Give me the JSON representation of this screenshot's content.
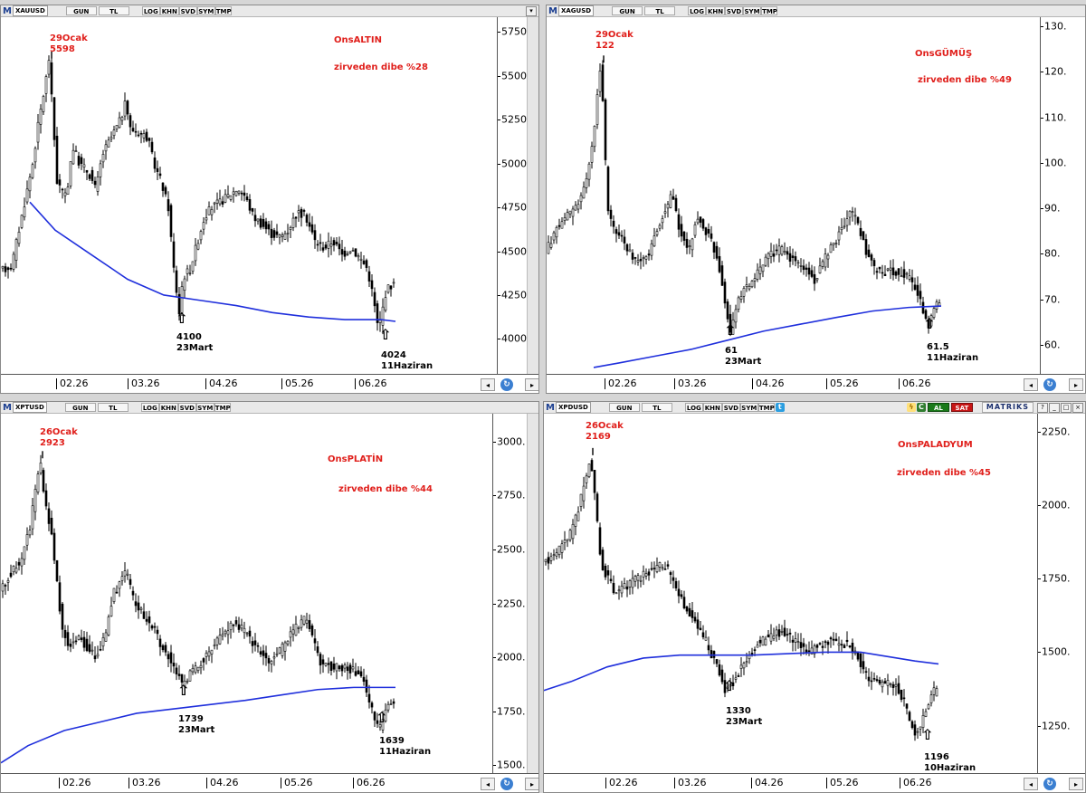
{
  "toolbar": {
    "btn_gun": "GUN",
    "btn_tl": "TL",
    "btn_log": "LOG",
    "btn_khn": "KHN",
    "btn_svd": "SVD",
    "btn_sym": "SYM",
    "btn_tmp": "TMP",
    "logo": "M",
    "al": "AL",
    "sat": "SAT",
    "brand": "MATRIKS"
  },
  "colors": {
    "price": "#000000",
    "moving_average": "#1f2fdc",
    "annotation_red": "#e0201c",
    "annotation_black": "#000000"
  },
  "icons": [
    "m-logo-icon",
    "scroll-left-icon",
    "scroll-right-icon",
    "refresh-icon",
    "arrow-up-icon",
    "bolt-icon",
    "c-icon",
    "twitter-icon"
  ],
  "chart_data": [
    {
      "type": "candlestick",
      "symbol": "XAUUSD",
      "title": "OnsALTIN",
      "subtitle": "zirveden dibe %28",
      "x_labels": [
        "02.26",
        "03.26",
        "04.26",
        "05.26",
        "06.26"
      ],
      "y_ticks": [
        4000,
        4250,
        4500,
        4750,
        5000,
        5250,
        5500,
        5750
      ],
      "y_tick_labels": [
        "4000.",
        "4250.",
        "4500.",
        "4750.",
        "5000.",
        "5250.",
        "5500.",
        "5750."
      ],
      "ylim": [
        3785,
        5835
      ],
      "peak": {
        "date": "29Ocak",
        "value": 5598
      },
      "lows": [
        {
          "value": "4100",
          "date": "23Mart"
        },
        {
          "value": "4024",
          "date": "11Haziran"
        }
      ],
      "price_path": [
        [
          0,
          4380
        ],
        [
          8,
          4400
        ],
        [
          15,
          4420
        ],
        [
          22,
          4600
        ],
        [
          30,
          4800
        ],
        [
          38,
          5000
        ],
        [
          45,
          5250
        ],
        [
          52,
          5450
        ],
        [
          56,
          5598
        ],
        [
          60,
          5300
        ],
        [
          65,
          4900
        ],
        [
          75,
          4800
        ],
        [
          82,
          5100
        ],
        [
          90,
          5000
        ],
        [
          100,
          4950
        ],
        [
          108,
          4850
        ],
        [
          115,
          5050
        ],
        [
          125,
          5150
        ],
        [
          135,
          5250
        ],
        [
          141,
          5350
        ],
        [
          146,
          5200
        ],
        [
          155,
          5180
        ],
        [
          165,
          5150
        ],
        [
          172,
          5000
        ],
        [
          180,
          4900
        ],
        [
          188,
          4750
        ],
        [
          194,
          4400
        ],
        [
          200,
          4150
        ],
        [
          204,
          4350
        ],
        [
          212,
          4400
        ],
        [
          220,
          4550
        ],
        [
          228,
          4700
        ],
        [
          236,
          4750
        ],
        [
          245,
          4780
        ],
        [
          255,
          4820
        ],
        [
          265,
          4860
        ],
        [
          272,
          4820
        ],
        [
          282,
          4700
        ],
        [
          292,
          4650
        ],
        [
          302,
          4600
        ],
        [
          312,
          4580
        ],
        [
          320,
          4620
        ],
        [
          330,
          4720
        ],
        [
          340,
          4700
        ],
        [
          350,
          4560
        ],
        [
          360,
          4520
        ],
        [
          370,
          4560
        ],
        [
          380,
          4480
        ],
        [
          390,
          4520
        ],
        [
          400,
          4460
        ],
        [
          408,
          4400
        ],
        [
          414,
          4250
        ],
        [
          420,
          4050
        ],
        [
          424,
          4150
        ],
        [
          428,
          4260
        ],
        [
          432,
          4300
        ],
        [
          436,
          4310
        ]
      ],
      "ma_path": [
        [
          32,
          4780
        ],
        [
          60,
          4620
        ],
        [
          100,
          4480
        ],
        [
          140,
          4340
        ],
        [
          180,
          4250
        ],
        [
          220,
          4220
        ],
        [
          260,
          4190
        ],
        [
          300,
          4150
        ],
        [
          340,
          4125
        ],
        [
          380,
          4110
        ],
        [
          400,
          4110
        ],
        [
          420,
          4110
        ],
        [
          436,
          4100
        ]
      ]
    },
    {
      "type": "candlestick",
      "symbol": "XAGUSD",
      "title": "OnsGÜMÜŞ",
      "subtitle": "zirveden dibe %49",
      "x_labels": [
        "02.26",
        "03.26",
        "04.26",
        "05.26",
        "06.26"
      ],
      "y_ticks": [
        60,
        70,
        80,
        90,
        100,
        110,
        120,
        130
      ],
      "y_tick_labels": [
        "60.",
        "70.",
        "80.",
        "90.",
        "100.",
        "110.",
        "120.",
        "130."
      ],
      "ylim": [
        53,
        132
      ],
      "peak": {
        "date": "29Ocak",
        "value": 122
      },
      "lows": [
        {
          "value": "61",
          "date": "23Mart"
        },
        {
          "value": "61.5",
          "date": "11Haziran"
        }
      ],
      "price_path": [
        [
          0,
          80
        ],
        [
          8,
          83
        ],
        [
          15,
          86
        ],
        [
          25,
          88
        ],
        [
          35,
          90
        ],
        [
          45,
          95
        ],
        [
          55,
          105
        ],
        [
          60,
          118
        ],
        [
          63,
          122
        ],
        [
          66,
          110
        ],
        [
          70,
          90
        ],
        [
          78,
          85
        ],
        [
          86,
          84
        ],
        [
          95,
          80
        ],
        [
          105,
          78
        ],
        [
          115,
          80
        ],
        [
          125,
          85
        ],
        [
          135,
          90
        ],
        [
          142,
          93
        ],
        [
          150,
          85
        ],
        [
          160,
          80
        ],
        [
          168,
          88
        ],
        [
          176,
          86
        ],
        [
          185,
          83
        ],
        [
          193,
          78
        ],
        [
          200,
          70
        ],
        [
          206,
          63
        ],
        [
          212,
          68
        ],
        [
          220,
          72
        ],
        [
          230,
          74
        ],
        [
          240,
          77
        ],
        [
          250,
          80
        ],
        [
          262,
          81
        ],
        [
          272,
          79
        ],
        [
          282,
          78
        ],
        [
          292,
          76
        ],
        [
          300,
          74
        ],
        [
          310,
          79
        ],
        [
          320,
          82
        ],
        [
          332,
          87
        ],
        [
          340,
          89
        ],
        [
          348,
          86
        ],
        [
          356,
          80
        ],
        [
          364,
          77
        ],
        [
          374,
          76
        ],
        [
          384,
          76
        ],
        [
          394,
          76
        ],
        [
          404,
          75
        ],
        [
          412,
          72
        ],
        [
          418,
          68
        ],
        [
          424,
          64
        ],
        [
          428,
          66
        ],
        [
          432,
          68
        ],
        [
          436,
          70
        ]
      ],
      "ma_path": [
        [
          52,
          55
        ],
        [
          80,
          56
        ],
        [
          120,
          57.5
        ],
        [
          160,
          59
        ],
        [
          200,
          61
        ],
        [
          240,
          63
        ],
        [
          280,
          64.5
        ],
        [
          320,
          66
        ],
        [
          360,
          67.4
        ],
        [
          400,
          68.2
        ],
        [
          436,
          68.5
        ]
      ]
    },
    {
      "type": "candlestick",
      "symbol": "XPTUSD",
      "title": "OnsPLATİN",
      "subtitle": "zirveden dibe %44",
      "x_labels": [
        "02.26",
        "03.26",
        "04.26",
        "05.26",
        "06.26"
      ],
      "y_ticks": [
        1500,
        1750,
        2000,
        2250,
        2500,
        2750,
        3000
      ],
      "y_tick_labels": [
        "1500.",
        "1750.",
        "2000.",
        "2250.",
        "2500.",
        "2750.",
        "3000."
      ],
      "ylim": [
        1450,
        3130
      ],
      "peak": {
        "date": "26Ocak",
        "value": 2923
      },
      "lows": [
        {
          "value": "1739",
          "date": "23Mart"
        },
        {
          "value": "1639",
          "date": "11Haziran"
        }
      ],
      "price_path": [
        [
          0,
          2300
        ],
        [
          8,
          2350
        ],
        [
          15,
          2400
        ],
        [
          25,
          2450
        ],
        [
          35,
          2600
        ],
        [
          42,
          2800
        ],
        [
          46,
          2923
        ],
        [
          52,
          2700
        ],
        [
          58,
          2600
        ],
        [
          64,
          2400
        ],
        [
          70,
          2150
        ],
        [
          78,
          2050
        ],
        [
          88,
          2100
        ],
        [
          98,
          2050
        ],
        [
          108,
          2000
        ],
        [
          118,
          2100
        ],
        [
          128,
          2300
        ],
        [
          136,
          2350
        ],
        [
          142,
          2400
        ],
        [
          150,
          2250
        ],
        [
          160,
          2200
        ],
        [
          170,
          2150
        ],
        [
          180,
          2050
        ],
        [
          190,
          2000
        ],
        [
          198,
          1920
        ],
        [
          204,
          1870
        ],
        [
          212,
          1930
        ],
        [
          220,
          1960
        ],
        [
          230,
          2000
        ],
        [
          240,
          2060
        ],
        [
          252,
          2120
        ],
        [
          262,
          2160
        ],
        [
          272,
          2120
        ],
        [
          282,
          2060
        ],
        [
          292,
          2020
        ],
        [
          300,
          1970
        ],
        [
          310,
          2020
        ],
        [
          322,
          2100
        ],
        [
          332,
          2150
        ],
        [
          340,
          2180
        ],
        [
          348,
          2080
        ],
        [
          356,
          1980
        ],
        [
          366,
          1960
        ],
        [
          376,
          1950
        ],
        [
          386,
          1950
        ],
        [
          396,
          1930
        ],
        [
          404,
          1880
        ],
        [
          410,
          1800
        ],
        [
          416,
          1720
        ],
        [
          420,
          1660
        ],
        [
          424,
          1690
        ],
        [
          428,
          1760
        ],
        [
          434,
          1790
        ]
      ],
      "ma_path": [
        [
          0,
          1510
        ],
        [
          30,
          1590
        ],
        [
          70,
          1660
        ],
        [
          110,
          1700
        ],
        [
          150,
          1740
        ],
        [
          190,
          1760
        ],
        [
          230,
          1780
        ],
        [
          270,
          1800
        ],
        [
          310,
          1825
        ],
        [
          350,
          1850
        ],
        [
          390,
          1860
        ],
        [
          436,
          1860
        ]
      ]
    },
    {
      "type": "candlestick",
      "symbol": "XPDUSD",
      "title": "OnsPALADYUM",
      "subtitle": "zirveden dibe %45",
      "x_labels": [
        "02.26",
        "03.26",
        "04.26",
        "05.26",
        "06.26"
      ],
      "y_ticks": [
        1250,
        1500,
        1750,
        2000,
        2250
      ],
      "y_tick_labels": [
        "1250.",
        "1500.",
        "1750.",
        "2000.",
        "2250."
      ],
      "ylim": [
        1080,
        2310
      ],
      "peak": {
        "date": "26Ocak",
        "value": 2169
      },
      "lows": [
        {
          "value": "1330",
          "date": "23Mart"
        },
        {
          "value": "1196",
          "date": "10Haziran"
        }
      ],
      "price_path": [
        [
          0,
          1800
        ],
        [
          10,
          1820
        ],
        [
          20,
          1850
        ],
        [
          32,
          1900
        ],
        [
          42,
          2000
        ],
        [
          50,
          2100
        ],
        [
          54,
          2169
        ],
        [
          60,
          2000
        ],
        [
          66,
          1800
        ],
        [
          74,
          1750
        ],
        [
          82,
          1700
        ],
        [
          92,
          1720
        ],
        [
          102,
          1740
        ],
        [
          112,
          1760
        ],
        [
          122,
          1780
        ],
        [
          132,
          1800
        ],
        [
          140,
          1780
        ],
        [
          150,
          1700
        ],
        [
          160,
          1650
        ],
        [
          170,
          1600
        ],
        [
          180,
          1550
        ],
        [
          190,
          1480
        ],
        [
          198,
          1420
        ],
        [
          204,
          1360
        ],
        [
          212,
          1400
        ],
        [
          220,
          1440
        ],
        [
          228,
          1480
        ],
        [
          236,
          1520
        ],
        [
          246,
          1540
        ],
        [
          256,
          1560
        ],
        [
          266,
          1570
        ],
        [
          276,
          1550
        ],
        [
          286,
          1520
        ],
        [
          296,
          1500
        ],
        [
          306,
          1520
        ],
        [
          318,
          1540
        ],
        [
          330,
          1530
        ],
        [
          342,
          1520
        ],
        [
          350,
          1480
        ],
        [
          358,
          1420
        ],
        [
          366,
          1400
        ],
        [
          376,
          1390
        ],
        [
          386,
          1400
        ],
        [
          394,
          1380
        ],
        [
          402,
          1320
        ],
        [
          408,
          1260
        ],
        [
          414,
          1220
        ],
        [
          420,
          1250
        ],
        [
          426,
          1320
        ],
        [
          432,
          1360
        ],
        [
          436,
          1370
        ]
      ],
      "ma_path": [
        [
          0,
          1370
        ],
        [
          30,
          1400
        ],
        [
          70,
          1450
        ],
        [
          110,
          1480
        ],
        [
          150,
          1490
        ],
        [
          190,
          1490
        ],
        [
          230,
          1490
        ],
        [
          270,
          1495
        ],
        [
          310,
          1500
        ],
        [
          350,
          1500
        ],
        [
          380,
          1485
        ],
        [
          410,
          1470
        ],
        [
          436,
          1460
        ]
      ]
    }
  ]
}
